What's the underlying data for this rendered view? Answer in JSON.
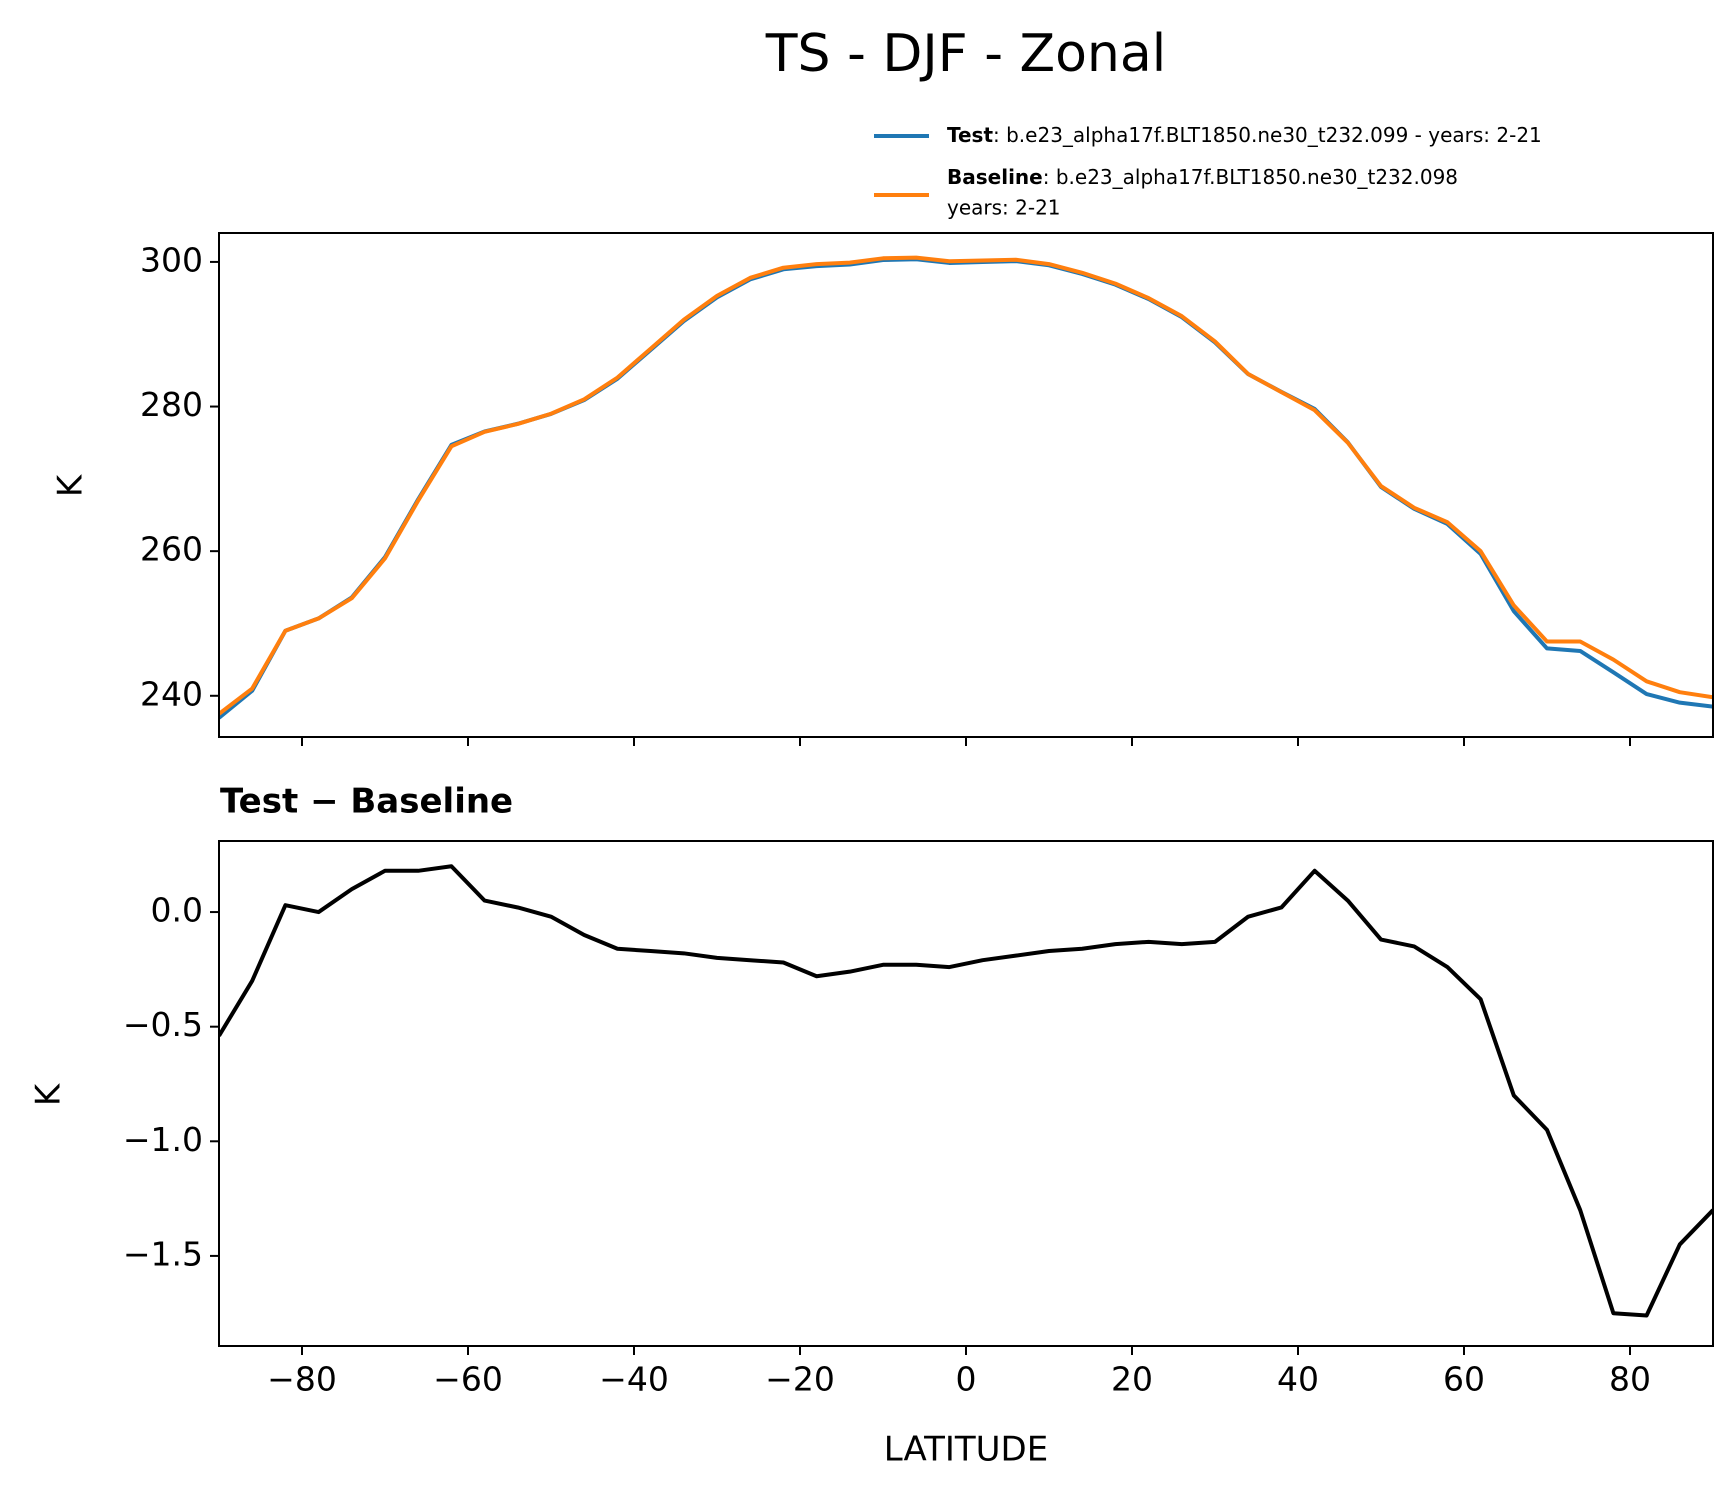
{
  "chart_data": [
    {
      "type": "line",
      "title": "TS - DJF - Zonal",
      "ylabel": "K",
      "x": [
        -90,
        -86,
        -82,
        -78,
        -74,
        -70,
        -66,
        -62,
        -58,
        -54,
        -50,
        -46,
        -42,
        -38,
        -34,
        -30,
        -26,
        -22,
        -18,
        -14,
        -10,
        -6,
        -2,
        2,
        6,
        10,
        14,
        18,
        22,
        26,
        30,
        34,
        38,
        42,
        46,
        50,
        54,
        58,
        62,
        66,
        70,
        74,
        78,
        82,
        86,
        90
      ],
      "series": [
        {
          "name": "Test",
          "description": [
            ": b.e23_alpha17f.BLT1850.ne30_t232.099 - years: 2-21"
          ],
          "color": "#1f77b4",
          "values": [
            236.96,
            240.7,
            249.0,
            250.7,
            253.6,
            259.18,
            267.18,
            274.7,
            276.55,
            277.62,
            278.98,
            280.9,
            283.84,
            287.83,
            291.82,
            295.1,
            297.59,
            298.98,
            299.42,
            299.64,
            300.27,
            300.37,
            299.86,
            299.99,
            300.11,
            299.53,
            298.34,
            296.86,
            294.87,
            292.36,
            288.87,
            284.48,
            282.02,
            279.68,
            275.05,
            268.88,
            265.85,
            263.76,
            259.62,
            251.7,
            246.55,
            246.2,
            243.25,
            240.24,
            239.05,
            238.5
          ]
        },
        {
          "name": "Baseline",
          "description": [
            ": b.e23_alpha17f.BLT1850.ne30_t232.098",
            "years: 2-21"
          ],
          "color": "#ff7f0e",
          "values": [
            237.5,
            241,
            249,
            250.7,
            253.5,
            259,
            267,
            274.5,
            276.5,
            277.6,
            279,
            281,
            284,
            288,
            292,
            295.3,
            297.8,
            299.2,
            299.7,
            299.9,
            300.5,
            300.6,
            300.1,
            300.2,
            300.3,
            299.7,
            298.5,
            297,
            295,
            292.5,
            289,
            284.5,
            282,
            279.5,
            275,
            269,
            266,
            264,
            260,
            252.5,
            247.5,
            247.5,
            245,
            242,
            240.5,
            239.8
          ]
        }
      ],
      "xlim": [
        -90,
        90
      ],
      "xticks": [
        -80,
        -60,
        -40,
        -20,
        0,
        20,
        40,
        60,
        80
      ],
      "ylim": [
        234.3,
        304
      ],
      "yticks": [
        240,
        260,
        280,
        300
      ]
    },
    {
      "type": "line",
      "title": "Test − Baseline",
      "ylabel": "K",
      "xlabel": "LATITUDE",
      "color": "#000000",
      "x": [
        -90,
        -86,
        -82,
        -78,
        -74,
        -70,
        -66,
        -62,
        -58,
        -54,
        -50,
        -46,
        -42,
        -38,
        -34,
        -30,
        -26,
        -22,
        -18,
        -14,
        -10,
        -6,
        -2,
        2,
        6,
        10,
        14,
        18,
        22,
        26,
        30,
        34,
        38,
        42,
        46,
        50,
        54,
        58,
        62,
        66,
        70,
        74,
        78,
        82,
        86,
        90
      ],
      "values": [
        -0.54,
        -0.3,
        0.03,
        0.0,
        0.1,
        0.18,
        0.18,
        0.2,
        0.05,
        0.02,
        -0.02,
        -0.1,
        -0.16,
        -0.17,
        -0.18,
        -0.2,
        -0.21,
        -0.22,
        -0.28,
        -0.26,
        -0.23,
        -0.23,
        -0.24,
        -0.21,
        -0.19,
        -0.17,
        -0.16,
        -0.14,
        -0.13,
        -0.14,
        -0.13,
        -0.02,
        0.02,
        0.18,
        0.05,
        -0.12,
        -0.15,
        -0.24,
        -0.38,
        -0.8,
        -0.95,
        -1.3,
        -1.75,
        -1.76,
        -1.45,
        -1.3
      ],
      "xlim": [
        -90,
        90
      ],
      "xticks": [
        {
          "value": -80,
          "label": "−80"
        },
        {
          "value": -60,
          "label": "−60"
        },
        {
          "value": -40,
          "label": "−40"
        },
        {
          "value": -20,
          "label": "−20"
        },
        0,
        20,
        40,
        60,
        80
      ],
      "ylim": [
        -1.893,
        0.31
      ],
      "yticks": [
        {
          "value": 0,
          "label": "0.0"
        },
        {
          "value": -0.5,
          "label": "−0.5"
        },
        {
          "value": -1.0,
          "label": "−1.0"
        },
        {
          "value": -1.5,
          "label": "−1.5"
        }
      ]
    }
  ]
}
